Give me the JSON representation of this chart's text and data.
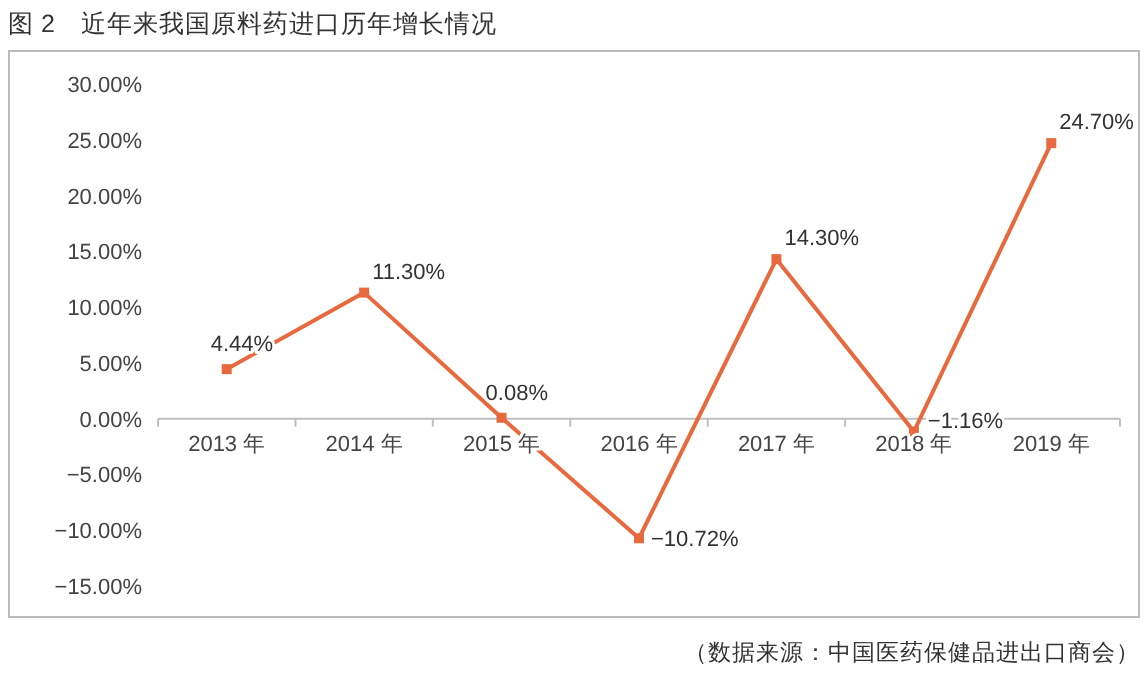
{
  "chart_data": {
    "type": "line",
    "title": "图 2　近年来我国原料药进口历年增长情况",
    "categories": [
      "2013 年",
      "2014 年",
      "2015 年",
      "2016 年",
      "2017 年",
      "2018 年",
      "2019 年"
    ],
    "series": [
      {
        "color": "#e8693d",
        "values": [
          4.44,
          11.3,
          0.08,
          -10.72,
          14.3,
          -1.16,
          24.7
        ],
        "value_labels": [
          "4.44%",
          "11.30%",
          "0.08%",
          "−10.72%",
          "14.30%",
          "−1.16%",
          "24.70%"
        ]
      }
    ],
    "ylim": [
      -15,
      30
    ],
    "yticks": [
      {
        "value": 30,
        "label": "30.00%"
      },
      {
        "value": 25,
        "label": "25.00%"
      },
      {
        "value": 20,
        "label": "20.00%"
      },
      {
        "value": 15,
        "label": "15.00%"
      },
      {
        "value": 10,
        "label": "10.00%"
      },
      {
        "value": 5,
        "label": "5.00%"
      },
      {
        "value": 0,
        "label": "0.00%"
      },
      {
        "value": -5,
        "label": "−5.00%"
      },
      {
        "value": -10,
        "label": "−10.00%"
      },
      {
        "value": -15,
        "label": "−15.00%"
      }
    ],
    "marker": "square",
    "line_style": "solid",
    "grid": false,
    "annotations": [
      "（数据来源：中国医药保健品进出口商会）"
    ]
  }
}
